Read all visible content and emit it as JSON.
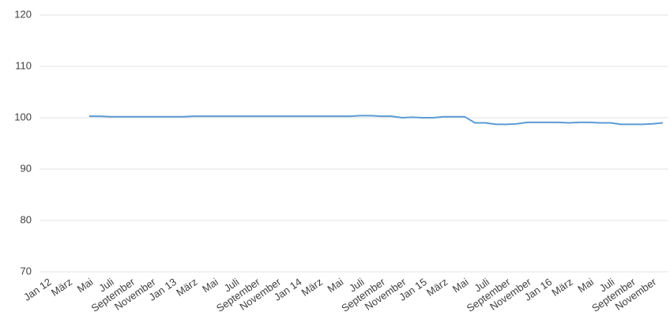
{
  "chart_data": {
    "type": "line",
    "categories": [
      "Jan 12",
      null,
      "März",
      null,
      "Mai",
      null,
      "Juli",
      null,
      "September",
      null,
      "November",
      null,
      "Jan 13",
      null,
      "März",
      null,
      "Mai",
      null,
      "Juli",
      null,
      "September",
      null,
      "November",
      null,
      "Jan 14",
      null,
      "März",
      null,
      "Mai",
      null,
      "Juli",
      null,
      "September",
      null,
      "November",
      null,
      "Jan 15",
      null,
      "März",
      null,
      "Mai",
      null,
      "Juli",
      null,
      "September",
      null,
      "November",
      null,
      "Jan 16",
      null,
      "März",
      null,
      "Mai",
      null,
      "Juli",
      null,
      "September",
      null,
      "November",
      null
    ],
    "series": [
      {
        "color": "#5b9bd5",
        "values": [
          null,
          null,
          null,
          null,
          100.3,
          100.3,
          100.2,
          100.2,
          100.2,
          100.2,
          100.2,
          100.2,
          100.2,
          100.2,
          100.3,
          100.3,
          100.3,
          100.3,
          100.3,
          100.3,
          100.3,
          100.3,
          100.3,
          100.3,
          100.3,
          100.3,
          100.3,
          100.3,
          100.3,
          100.3,
          100.4,
          100.4,
          100.3,
          100.3,
          100.0,
          100.1,
          100.0,
          100.0,
          100.2,
          100.2,
          100.2,
          99.0,
          99.0,
          98.7,
          98.7,
          98.8,
          99.1,
          99.1,
          99.1,
          99.1,
          99.0,
          99.1,
          99.1,
          99.0,
          99.0,
          98.7,
          98.7,
          98.7,
          98.8,
          99.0
        ]
      }
    ],
    "ylim": [
      70,
      120
    ],
    "yticks": [
      70,
      80,
      90,
      100,
      110,
      120
    ],
    "grid": true
  }
}
